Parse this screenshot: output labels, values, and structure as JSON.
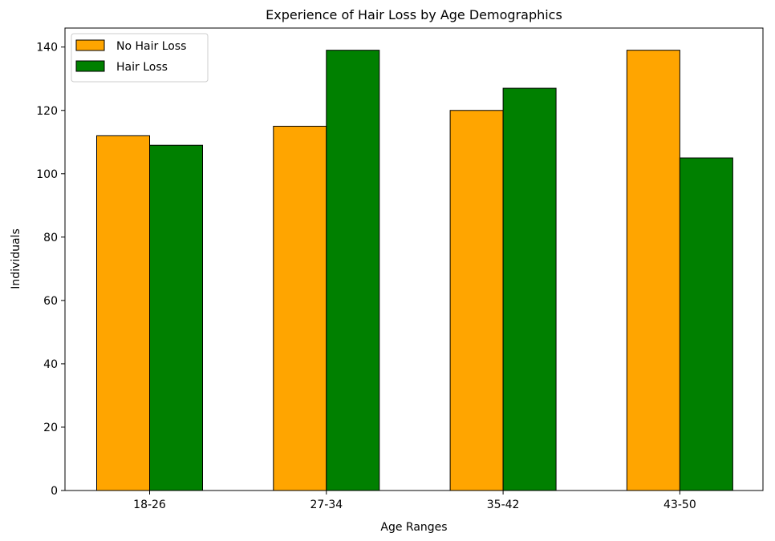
{
  "chart_data": {
    "type": "bar",
    "title": "Experience of Hair Loss by Age Demographics",
    "xlabel": "Age Ranges",
    "ylabel": "Individuals",
    "categories": [
      "18-26",
      "27-34",
      "35-42",
      "43-50"
    ],
    "series": [
      {
        "name": "No Hair Loss",
        "color": "#ffa500",
        "values": [
          112,
          115,
          120,
          139
        ]
      },
      {
        "name": "Hair Loss",
        "color": "#008000",
        "values": [
          109,
          139,
          127,
          105
        ]
      }
    ],
    "ylim": [
      0,
      146
    ],
    "yticks": [
      0,
      20,
      40,
      60,
      80,
      100,
      120,
      140
    ],
    "grid": false,
    "legend_position": "top-left",
    "bar_edge_color": "#000000"
  }
}
